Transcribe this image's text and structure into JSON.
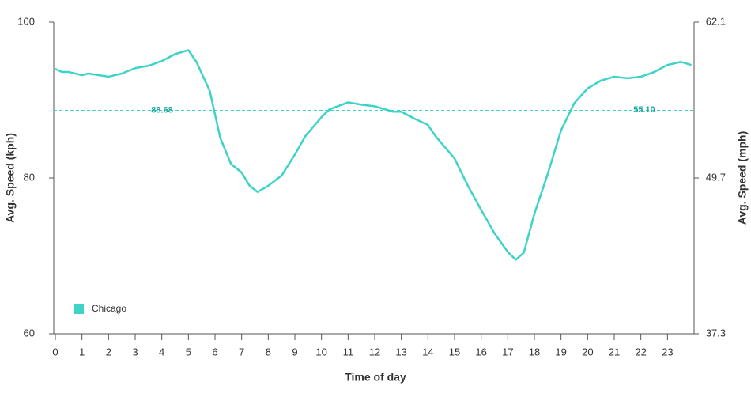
{
  "chart_data": {
    "type": "line",
    "x_label": "Time of day",
    "y_label": "Avg. Speed (kph)",
    "y2_label": "Avg. Speed (mph)",
    "xlim": [
      0,
      24
    ],
    "xticks": [
      0,
      1,
      2,
      3,
      4,
      5,
      6,
      7,
      8,
      9,
      10,
      11,
      12,
      13,
      14,
      15,
      16,
      17,
      18,
      19,
      20,
      21,
      22,
      23
    ],
    "ylim": [
      60,
      100
    ],
    "yticks": [
      60,
      80,
      100
    ],
    "y2lim": [
      37.3,
      62.1
    ],
    "y2ticks": [
      37.3,
      49.7,
      62.1
    ],
    "legend": "bottom-left",
    "reference_lines": [
      {
        "value": 88.68,
        "label": "88.68"
      },
      {
        "value": 55.1,
        "label": "55.10",
        "axis": "y2"
      }
    ],
    "series": [
      {
        "name": "Chicago",
        "color": "#3dd3c7",
        "x": [
          0,
          0.25,
          0.5,
          1,
          1.25,
          2,
          2.5,
          3,
          3.5,
          4,
          4.5,
          5,
          5.3,
          5.8,
          6.2,
          6.6,
          7,
          7.3,
          7.6,
          8,
          8.5,
          9,
          9.4,
          10,
          10.3,
          11,
          11.5,
          12,
          12.7,
          13,
          13.5,
          14,
          14.3,
          15,
          15.5,
          16,
          16.5,
          17,
          17.3,
          17.6,
          18,
          18.5,
          19,
          19.5,
          20,
          20.5,
          21,
          21.5,
          22,
          22.5,
          23,
          23.5,
          23.9
        ],
        "values": [
          94.0,
          93.6,
          93.6,
          93.2,
          93.4,
          93.0,
          93.4,
          94.1,
          94.4,
          95.0,
          95.9,
          96.4,
          94.9,
          91.2,
          85.1,
          81.8,
          80.7,
          79.0,
          78.2,
          79.0,
          80.3,
          83.0,
          85.4,
          87.8,
          88.8,
          89.7,
          89.4,
          89.2,
          88.5,
          88.5,
          87.6,
          86.8,
          85.3,
          82.5,
          79.0,
          75.9,
          72.9,
          70.5,
          69.5,
          70.4,
          75.4,
          80.5,
          86.1,
          89.6,
          91.5,
          92.5,
          93.0,
          92.8,
          93.0,
          93.6,
          94.5,
          94.9,
          94.5
        ]
      }
    ]
  }
}
